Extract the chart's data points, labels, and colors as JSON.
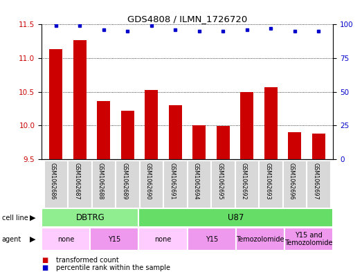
{
  "title": "GDS4808 / ILMN_1726720",
  "samples": [
    "GSM1062686",
    "GSM1062687",
    "GSM1062688",
    "GSM1062689",
    "GSM1062690",
    "GSM1062691",
    "GSM1062694",
    "GSM1062695",
    "GSM1062692",
    "GSM1062693",
    "GSM1062696",
    "GSM1062697"
  ],
  "red_values": [
    11.13,
    11.27,
    10.36,
    10.22,
    10.53,
    10.3,
    10.0,
    9.99,
    10.5,
    10.57,
    9.9,
    9.88
  ],
  "blue_values": [
    99,
    99,
    96,
    95,
    99,
    96,
    95,
    95,
    96,
    97,
    95,
    95
  ],
  "ylim_left": [
    9.5,
    11.5
  ],
  "ylim_right": [
    0,
    100
  ],
  "yticks_left": [
    9.5,
    10.0,
    10.5,
    11.0,
    11.5
  ],
  "yticks_right": [
    0,
    25,
    50,
    75,
    100
  ],
  "bar_color": "#CC0000",
  "dot_color": "#0000CC",
  "cell_line_color_dbtrg": "#90EE90",
  "cell_line_color_u87": "#66DD66",
  "agent_color_none": "#FFB6FF",
  "agent_color_y15": "#EE88EE",
  "agent_color_temoz": "#DD88EE",
  "agent_color_y15temoz": "#DD88EE",
  "sample_box_color": "#D8D8D8",
  "legend_red": "transformed count",
  "legend_blue": "percentile rank within the sample",
  "cell_line_spans": [
    {
      "label": "DBTRG",
      "start": 0,
      "end": 4,
      "color": "#90EE90"
    },
    {
      "label": "U87",
      "start": 4,
      "end": 12,
      "color": "#66DD66"
    }
  ],
  "agent_spans": [
    {
      "label": "none",
      "start": 0,
      "end": 2,
      "color": "#FFCCFF"
    },
    {
      "label": "Y15",
      "start": 2,
      "end": 4,
      "color": "#EE99EE"
    },
    {
      "label": "none",
      "start": 4,
      "end": 6,
      "color": "#FFCCFF"
    },
    {
      "label": "Y15",
      "start": 6,
      "end": 8,
      "color": "#EE99EE"
    },
    {
      "label": "Temozolomide",
      "start": 8,
      "end": 10,
      "color": "#EE99EE"
    },
    {
      "label": "Y15 and\nTemozolomide",
      "start": 10,
      "end": 12,
      "color": "#EE99EE"
    }
  ]
}
